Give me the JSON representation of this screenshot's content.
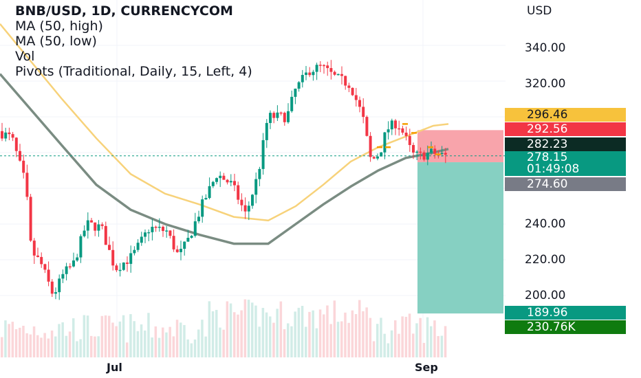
{
  "legend": {
    "title": "BNB/USD, 1D, CURRENCYCOM",
    "ma_high": "MA (50, high)",
    "ma_low": "MA (50, low)",
    "vol": "Vol",
    "pivots": "Pivots (Traditional, Daily, 15, Left, 4)"
  },
  "axis": {
    "currency": "USD",
    "y_ticks": [
      "340.00",
      "320.00",
      "240.00",
      "220.00",
      "200.00"
    ],
    "x_ticks": [
      "Jul",
      "Sep"
    ]
  },
  "price_tags": {
    "pivot_r": {
      "value": "296.46",
      "bg": "#f7c23c",
      "fg": "#131722"
    },
    "stop": {
      "value": "292.56",
      "bg": "#f23645",
      "fg": "#ffffff"
    },
    "pivot_p": {
      "value": "282.23",
      "bg": "#0c2b24",
      "fg": "#ffffff"
    },
    "last": {
      "value": "278.15",
      "countdown": "01:49:08",
      "bg": "#089981",
      "fg": "#ffffff"
    },
    "entry": {
      "value": "274.60",
      "bg": "#787b86",
      "fg": "#ffffff"
    },
    "target": {
      "value": "189.96",
      "bg": "#089981",
      "fg": "#ffffff"
    },
    "volume": {
      "value": "230.76K",
      "bg": "#0f7b0f",
      "fg": "#ffffff"
    }
  },
  "colors": {
    "up": "#089981",
    "down": "#f23645",
    "ma_high": "#f7d27a",
    "ma_low": "#7a8c82",
    "stop_zone": "#f7949c",
    "target_zone": "#7fcdbf"
  },
  "chart_data": {
    "type": "candlestick",
    "y_unit": "USD",
    "ylim": [
      175,
      362
    ],
    "x_ticks": [
      "Jul",
      "Sep"
    ],
    "ma_high": [
      [
        0,
        352
      ],
      [
        90,
        310
      ],
      [
        140,
        288
      ],
      [
        190,
        268
      ],
      [
        240,
        257
      ],
      [
        290,
        251
      ],
      [
        340,
        244
      ],
      [
        390,
        242
      ],
      [
        430,
        250
      ],
      [
        470,
        262
      ],
      [
        510,
        275
      ],
      [
        550,
        283
      ],
      [
        590,
        289
      ],
      [
        630,
        295
      ],
      [
        652,
        296
      ]
    ],
    "ma_low": [
      [
        0,
        324
      ],
      [
        90,
        284
      ],
      [
        140,
        262
      ],
      [
        190,
        248
      ],
      [
        240,
        240
      ],
      [
        290,
        234
      ],
      [
        340,
        229
      ],
      [
        390,
        229
      ],
      [
        430,
        240
      ],
      [
        470,
        251
      ],
      [
        510,
        261
      ],
      [
        550,
        270
      ],
      [
        590,
        277
      ],
      [
        630,
        280
      ],
      [
        652,
        282
      ]
    ],
    "volume_max_k": 600,
    "risk_reward": {
      "x_start": 607,
      "x_end": 732,
      "entry": 274.6,
      "stop": 292.56,
      "target": 189.96
    },
    "volume_label": "230.76K"
  }
}
